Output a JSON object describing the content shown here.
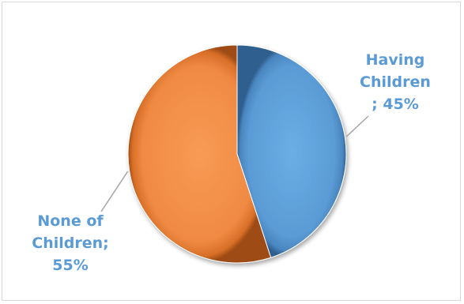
{
  "chart_data": {
    "type": "pie",
    "title": "",
    "slices": [
      {
        "label_lines": [
          "Having",
          "Children",
          "; 45%"
        ],
        "value": 45,
        "color": "#5b9bd5"
      },
      {
        "label_lines": [
          "None of",
          "Children;",
          "55%"
        ],
        "value": 55,
        "color": "#ed7d31"
      }
    ],
    "label_color": "#5b9bd5",
    "style": "3d-beveled",
    "start_angle_deg": 0,
    "direction": "clockwise",
    "legend": "none"
  }
}
